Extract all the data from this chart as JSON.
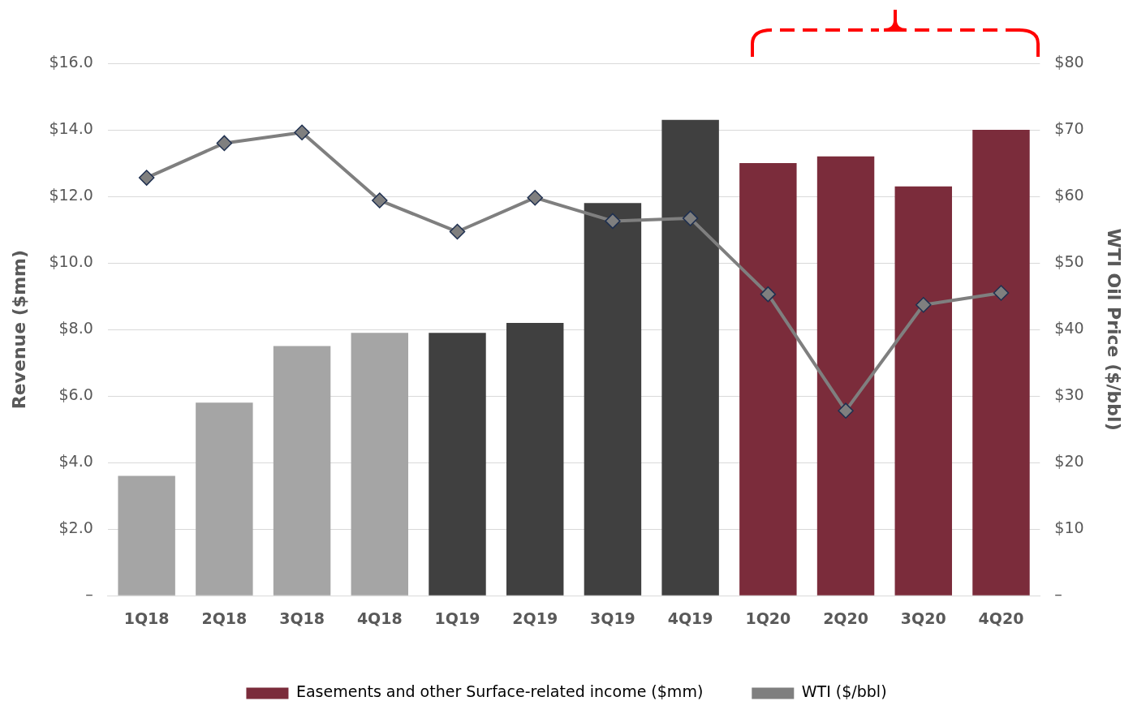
{
  "chart_data": {
    "type": "bar",
    "ylabel": "Revenue ($mm)",
    "y2label": "WTI Oil Price ($/bbl)",
    "categories": [
      "1Q18",
      "2Q18",
      "3Q18",
      "4Q18",
      "1Q19",
      "2Q19",
      "3Q19",
      "4Q19",
      "1Q20",
      "2Q20",
      "3Q20",
      "4Q20"
    ],
    "series": [
      {
        "name": "Easements and other Surface-related income ($mm)",
        "color": "#7b2c3b",
        "colors": [
          "#a5a5a5",
          "#a5a5a5",
          "#a5a5a5",
          "#a5a5a5",
          "#404040",
          "#404040",
          "#404040",
          "#404040",
          "#7b2c3b",
          "#7b2c3b",
          "#7b2c3b",
          "#7b2c3b"
        ],
        "values": [
          3.6,
          5.8,
          7.5,
          7.9,
          7.9,
          8.2,
          11.8,
          14.3,
          13.0,
          13.2,
          12.3,
          14.0
        ]
      },
      {
        "name": "WTI ($/bbl)",
        "type": "line",
        "axis": "y2",
        "color": "#7f7f7f",
        "values": [
          62.8,
          68.0,
          69.6,
          59.4,
          54.7,
          59.8,
          56.3,
          56.7,
          45.3,
          27.8,
          43.7,
          45.5
        ]
      }
    ],
    "ylim": [
      0,
      16
    ],
    "yticks": [
      {
        "value": 0,
        "label": "–"
      },
      {
        "value": 2,
        "label": "$2.0"
      },
      {
        "value": 4,
        "label": "$4.0"
      },
      {
        "value": 6,
        "label": "$6.0"
      },
      {
        "value": 8,
        "label": "$8.0"
      },
      {
        "value": 10,
        "label": "$10.0"
      },
      {
        "value": 12,
        "label": "$12.0"
      },
      {
        "value": 14,
        "label": "$14.0"
      },
      {
        "value": 16,
        "label": "$16.0"
      }
    ],
    "y2lim": [
      0,
      80
    ],
    "y2ticks": [
      {
        "value": 0,
        "label": "–"
      },
      {
        "value": 10,
        "label": "$10"
      },
      {
        "value": 20,
        "label": "$20"
      },
      {
        "value": 30,
        "label": "$30"
      },
      {
        "value": 40,
        "label": "$40"
      },
      {
        "value": 50,
        "label": "$50"
      },
      {
        "value": 60,
        "label": "$60"
      },
      {
        "value": 70,
        "label": "$70"
      },
      {
        "value": 80,
        "label": "$80"
      }
    ],
    "grid": "y",
    "legend": "bottom",
    "marker": "diamond"
  }
}
